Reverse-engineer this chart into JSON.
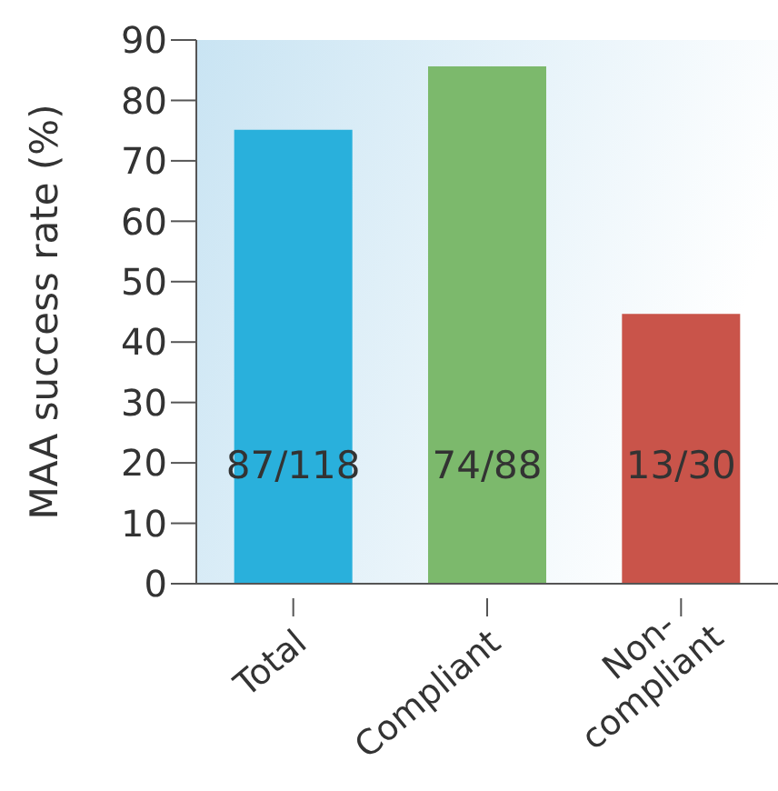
{
  "chart_data": {
    "type": "bar",
    "ylabel": "MAA success rate (%)",
    "categories": [
      "Total",
      "Compliant",
      "Non-compliant"
    ],
    "values": [
      75,
      85.5,
      44.5
    ],
    "colors": [
      "#29b0dc",
      "#7cb96c",
      "#c9544a"
    ],
    "value_labels": [
      "87/118",
      "74/88",
      "13/30"
    ],
    "ylim": [
      0,
      90
    ],
    "yticks": [
      0,
      10,
      20,
      30,
      40,
      50,
      60,
      70,
      80,
      90
    ],
    "grid": false,
    "legend": false
  }
}
